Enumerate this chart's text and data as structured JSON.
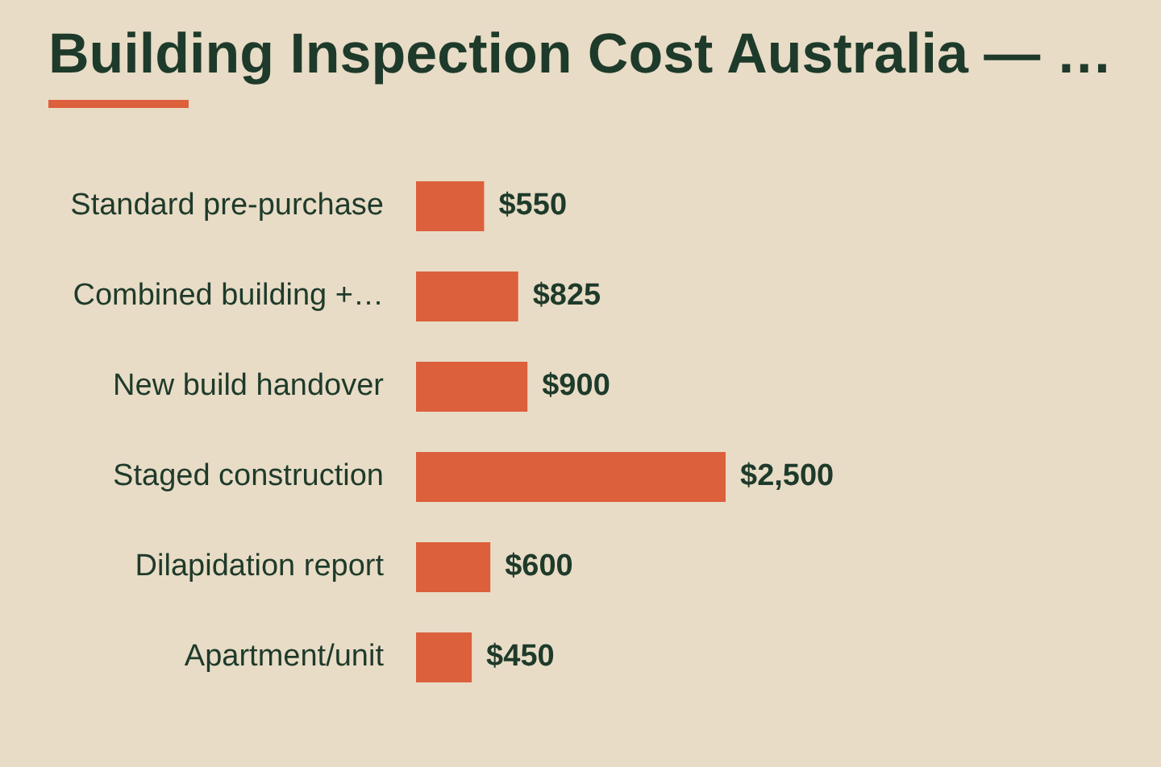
{
  "chart_data": {
    "type": "bar",
    "orientation": "horizontal",
    "title": "Building Inspection Cost Australia — …",
    "categories": [
      "Standard pre-purchase",
      "Combined building +…",
      "New build handover",
      "Staged construction",
      "Dilapidation report",
      "Apartment/unit"
    ],
    "values": [
      550,
      825,
      900,
      2500,
      600,
      450
    ],
    "value_labels": [
      "$550",
      "$825",
      "$900",
      "$2,500",
      "$600",
      "$450"
    ],
    "color": "#dc603c",
    "legend": false,
    "tick_labels": "y"
  }
}
